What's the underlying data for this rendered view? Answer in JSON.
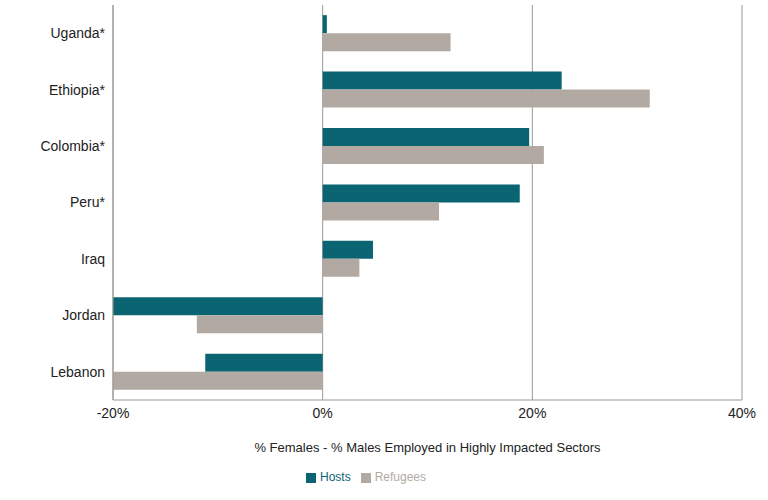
{
  "chart_data": {
    "type": "bar",
    "orientation": "horizontal",
    "x_label": "% Females - % Males Employed in Highly Impacted Sectors",
    "categories": [
      "Uganda*",
      "Ethiopia*",
      "Colombia*",
      "Peru*",
      "Iraq",
      "Jordan",
      "Lebanon"
    ],
    "series": [
      {
        "name": "Hosts",
        "color": "#0b6472",
        "values": [
          0.4,
          22.8,
          19.7,
          18.8,
          4.8,
          -20,
          -11.2
        ]
      },
      {
        "name": "Refugees",
        "color": "#b2aaa2",
        "values": [
          12.2,
          31.2,
          21.1,
          11.1,
          3.5,
          -12.0,
          -20
        ]
      }
    ],
    "xlim": [
      -20,
      40
    ],
    "xticks": [
      {
        "value": -20,
        "label": "-20%"
      },
      {
        "value": 0,
        "label": "0%"
      },
      {
        "value": 20,
        "label": "20%"
      },
      {
        "value": 40,
        "label": "40%"
      }
    ],
    "grid": true,
    "legend": "bottom"
  }
}
